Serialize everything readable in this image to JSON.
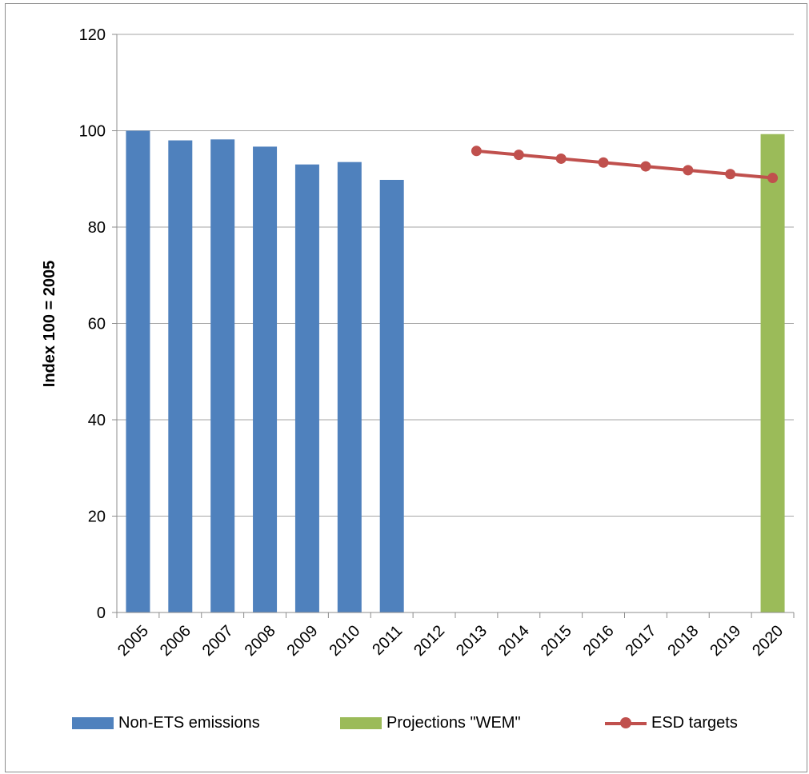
{
  "chart_data": {
    "type": "bar",
    "categories": [
      "2005",
      "2006",
      "2007",
      "2008",
      "2009",
      "2010",
      "2011",
      "2012",
      "2013",
      "2014",
      "2015",
      "2016",
      "2017",
      "2018",
      "2019",
      "2020"
    ],
    "ylabel": "Index 100 = 2005",
    "ylim": [
      0,
      120
    ],
    "yticks": [
      0,
      20,
      40,
      60,
      80,
      100,
      120
    ],
    "grid": true,
    "legend_position": "bottom",
    "series": [
      {
        "name": "Non-ETS emissions",
        "kind": "bar",
        "color": "#4f81bd",
        "values": [
          100,
          98,
          98.2,
          96.7,
          93,
          93.5,
          89.8,
          null,
          null,
          null,
          null,
          null,
          null,
          null,
          null,
          null
        ]
      },
      {
        "name": "Projections \"WEM\"",
        "kind": "bar",
        "color": "#9bbb59",
        "values": [
          null,
          null,
          null,
          null,
          null,
          null,
          null,
          null,
          null,
          null,
          null,
          null,
          null,
          null,
          null,
          99.3
        ]
      },
      {
        "name": "ESD targets",
        "kind": "line",
        "color": "#c0504d",
        "values": [
          null,
          null,
          null,
          null,
          null,
          null,
          null,
          null,
          95.8,
          95,
          94.2,
          93.4,
          92.6,
          91.8,
          91,
          90.2
        ]
      }
    ]
  }
}
